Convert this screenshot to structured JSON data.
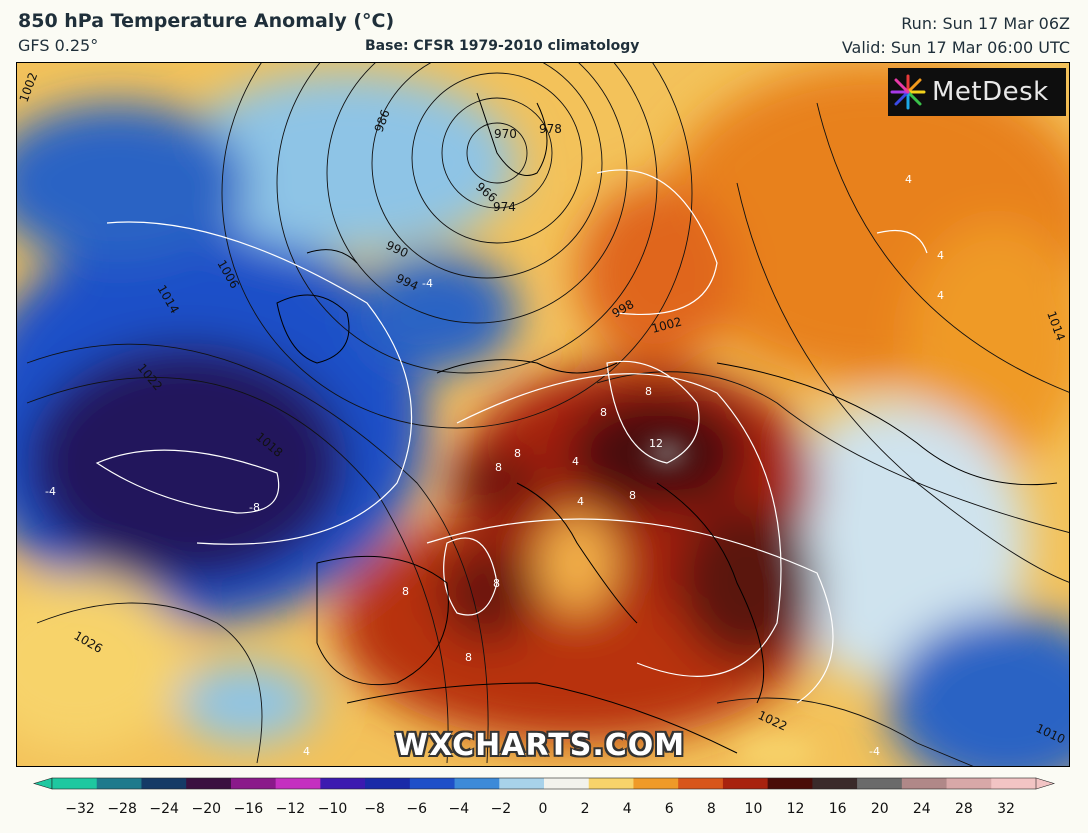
{
  "header": {
    "title": "850 hPa Temperature Anomaly (°C)",
    "model": "GFS 0.25°",
    "base": "Base: CFSR 1979-2010 climatology",
    "run": "Run: Sun 17 Mar 06Z",
    "valid": "Valid: Sun 17 Mar 06:00 UTC"
  },
  "logo": {
    "text": "MetDesk",
    "icon": "metdesk-burst-icon"
  },
  "watermark": "WXCHARTS.COM",
  "isobar_labels": [
    "1002",
    "986",
    "978",
    "970",
    "966",
    "974",
    "990",
    "994",
    "998",
    "1002",
    "1006",
    "1014",
    "1022",
    "1018",
    "1026",
    "1022",
    "1014",
    "1010"
  ],
  "anomaly_labels": [
    "-4",
    "-4",
    "-8",
    "4",
    "4",
    "4",
    "8",
    "8",
    "12",
    "8",
    "8",
    "8",
    "8",
    "8",
    "8",
    "4",
    "4",
    "4",
    "-4"
  ],
  "colorbar": {
    "ticks": [
      "−32",
      "−28",
      "−24",
      "−20",
      "−16",
      "−12",
      "−10",
      "−8",
      "−6",
      "−4",
      "−2",
      "0",
      "2",
      "4",
      "6",
      "8",
      "10",
      "12",
      "16",
      "20",
      "24",
      "28",
      "32"
    ],
    "colors": [
      "#1ec8a0",
      "#1f7a8c",
      "#153a66",
      "#3a1040",
      "#8a1a8a",
      "#c430c0",
      "#3c1ab0",
      "#1a2aa8",
      "#1f4fc8",
      "#3d8ad8",
      "#a8d2ea",
      "#f2f2ec",
      "#f7d36a",
      "#ef9a28",
      "#d8561a",
      "#a8220e",
      "#4a0c08",
      "#3a2a2a",
      "#6a6a6a",
      "#b08888",
      "#d8a8a8",
      "#f2c4c4"
    ]
  },
  "palette": {
    "cold_deep": "#24145c",
    "cold": "#1f4fc8",
    "cool": "#8ec4e6",
    "neutral": "#f4f2e8",
    "warm": "#f3c25a",
    "orange": "#e8811e",
    "hot": "#b8300e",
    "very_hot": "#5a120a"
  }
}
